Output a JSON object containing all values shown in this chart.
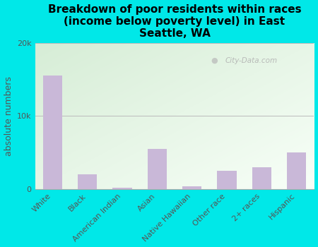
{
  "categories": [
    "White",
    "Black",
    "American Indian",
    "Asian",
    "Native Hawaiian",
    "Other race",
    "2+ races",
    "Hispanic"
  ],
  "values": [
    15500,
    2000,
    150,
    5500,
    350,
    2500,
    3000,
    5000
  ],
  "bar_color": "#c9b8d8",
  "title": "Breakdown of poor residents within races\n(income below poverty level) in East\nSeattle, WA",
  "ylabel": "absolute numbers",
  "ylim": [
    0,
    20000
  ],
  "yticks": [
    0,
    10000,
    20000
  ],
  "ytick_labels": [
    "0",
    "10k",
    "20k"
  ],
  "bg_color_top_left": "#d6edd6",
  "bg_color_bottom_right": "#f8fff8",
  "outer_bg": "#00e8e8",
  "title_fontsize": 11,
  "ylabel_fontsize": 9,
  "tick_fontsize": 8,
  "watermark": "City-Data.com"
}
